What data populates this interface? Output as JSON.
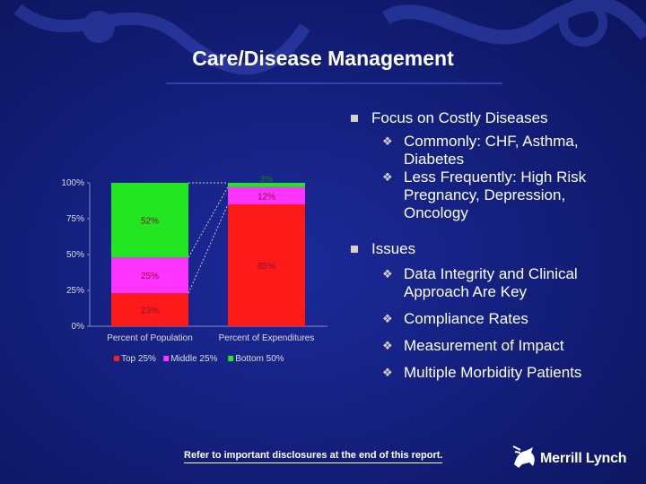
{
  "slide": {
    "title": "Care/Disease Management",
    "disclaimer": "Refer to important disclosures at the end of this report.",
    "logo_text": "Merrill Lynch"
  },
  "bullets": [
    {
      "label": "Focus on Costly Diseases",
      "subs": [
        [
          "Commonly: CHF, Asthma,",
          "Diabetes"
        ],
        [
          "Less Frequently: High Risk",
          "Pregnancy, Depression,",
          "Oncology"
        ]
      ]
    },
    {
      "label": "Issues",
      "subs": [
        [
          "Data Integrity and Clinical",
          "Approach Are Key"
        ],
        [
          "Compliance Rates"
        ],
        [
          "Measurement of Impact"
        ],
        [
          "Multiple Morbidity Patients"
        ]
      ]
    }
  ],
  "chart_data": {
    "type": "bar",
    "stacked": true,
    "categories": [
      "Percent of Population",
      "Percent of Expenditures"
    ],
    "series": [
      {
        "name": "Top 25%",
        "values": [
          23,
          85
        ],
        "labels": [
          "23%",
          "85%"
        ],
        "color": "#ff1a1a"
      },
      {
        "name": "Middle 25%",
        "values": [
          25,
          12
        ],
        "labels": [
          "25%",
          "12%"
        ],
        "color": "#ff33ff"
      },
      {
        "name": "Bottom 50%",
        "values": [
          52,
          3
        ],
        "labels": [
          "52%",
          "3%"
        ],
        "color": "#22e622"
      }
    ],
    "yticks": [
      "0%",
      "25%",
      "50%",
      "75%",
      "100%"
    ],
    "ylim": [
      0,
      100
    ],
    "legend": "bottom",
    "connector_lines": true
  }
}
